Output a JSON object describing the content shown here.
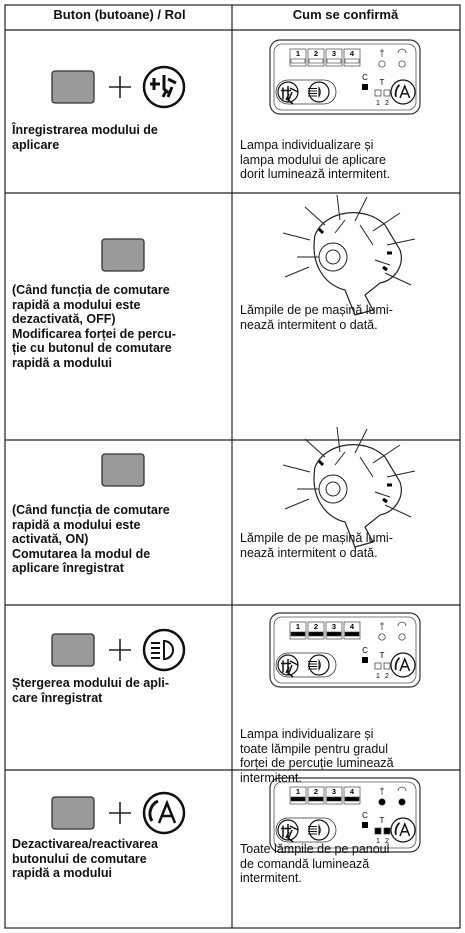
{
  "header": {
    "col1": "Buton (butoane) / Rol",
    "col2": "Cum se confirmă"
  },
  "panel_labels": {
    "modes": [
      "1",
      "2",
      "3",
      "4"
    ],
    "clear": "C",
    "timer": "T",
    "timer_modes": [
      "1",
      "2"
    ]
  },
  "rows": [
    {
      "role": [
        "Înregistrarea modului de",
        "aplicare"
      ],
      "confirmation": [
        "Lampa individualizare și",
        "lampa modului de aplicare",
        "dorit luminează intermitent."
      ]
    },
    {
      "role": [
        "(Când funcția de comutare",
        "rapidă a modului este",
        "dezactivată, OFF)",
        "Modificarea forței de percu-",
        "ție cu butonul de comutare",
        "rapidă a modului"
      ],
      "confirmation": [
        "Lămpile de pe mașină lumi-",
        "nează intermitent o dată."
      ]
    },
    {
      "role": [
        "(Când funcția de comutare",
        "rapidă a modului este",
        "activată, ON)",
        "Comutarea la modul de",
        "aplicare înregistrat"
      ],
      "confirmation": [
        "Lămpile de pe mașină lumi-",
        "nează intermitent o dată."
      ]
    },
    {
      "role": [
        "Ștergerea modului de apli-",
        "care înregistrat"
      ],
      "confirmation": [
        "Lampa individualizare și",
        "toate lămpile pentru gradul",
        "forței de percuție luminează",
        "intermitent."
      ]
    },
    {
      "role": [
        "Dezactivarea/reactivarea",
        "butonului de comutare",
        "rapidă a modului"
      ],
      "confirmation": [
        "Toate lămpile de pe panoul",
        "de comandă luminează",
        "intermitent."
      ]
    }
  ]
}
